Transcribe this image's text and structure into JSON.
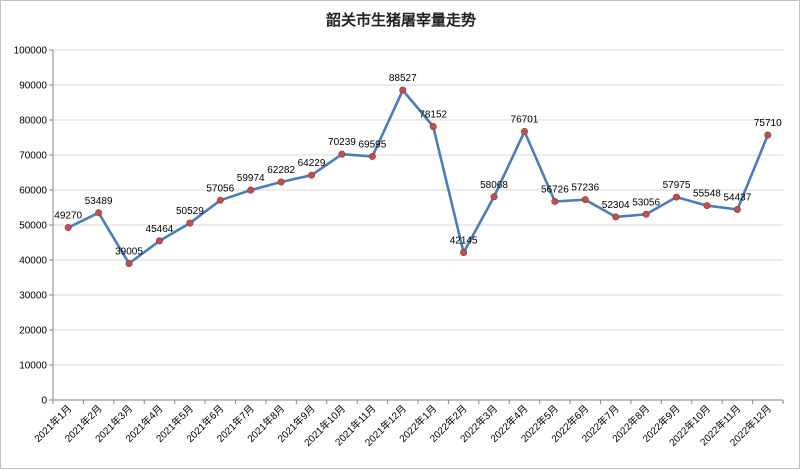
{
  "chart_data": {
    "type": "line",
    "title": "韶关市生猪屠宰量走势",
    "xlabel": "",
    "ylabel": "",
    "ylim": [
      0,
      100000
    ],
    "yticks": [
      "0",
      "10000",
      "20000",
      "30000",
      "40000",
      "50000",
      "60000",
      "70000",
      "80000",
      "90000",
      "100000"
    ],
    "grid": "horizontal",
    "legend": "none",
    "categories": [
      "2021年1月",
      "2021年2月",
      "2021年3月",
      "2021年4月",
      "2021年5月",
      "2021年6月",
      "2021年7月",
      "2021年8月",
      "2021年9月",
      "2021年10月",
      "2021年11月",
      "2021年12月",
      "2022年1月",
      "2022年2月",
      "2022年3月",
      "2022年4月",
      "2022年5月",
      "2022年6月",
      "2022年7月",
      "2022年8月",
      "2022年9月",
      "2022年10月",
      "2022年11月",
      "2022年12月"
    ],
    "series": [
      {
        "values": [
          49270,
          53489,
          39005,
          45464,
          50529,
          57056,
          59974,
          62282,
          64229,
          70239,
          69595,
          88527,
          78152,
          42145,
          58068,
          76701,
          56726,
          57236,
          52304,
          53056,
          57975,
          55548,
          54437,
          75710
        ],
        "color": "#4a7ebb",
        "marker_color": "#c0504d"
      }
    ]
  }
}
